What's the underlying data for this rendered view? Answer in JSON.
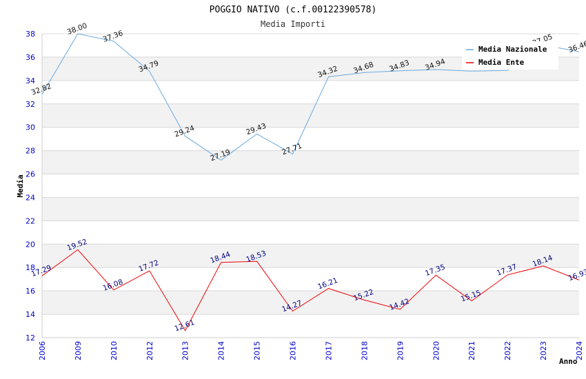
{
  "chart_data": {
    "type": "line",
    "title": "POGGIO NATIVO (c.f.00122390578)",
    "subtitle": "Media Importi",
    "xlabel": "Anno",
    "ylabel": "Media",
    "ylim": [
      12,
      38
    ],
    "yticks": [
      12,
      14,
      16,
      18,
      20,
      22,
      24,
      26,
      28,
      30,
      32,
      34,
      36,
      38
    ],
    "categories": [
      "2006",
      "2009",
      "2010",
      "2012",
      "2013",
      "2014",
      "2015",
      "2016",
      "2017",
      "2018",
      "2019",
      "2020",
      "2021",
      "2022",
      "2023",
      "2024"
    ],
    "series": [
      {
        "name": "Media Nazionale",
        "color": "#6aa8e0",
        "values": [
          32.82,
          38.0,
          37.36,
          34.79,
          29.24,
          27.19,
          29.43,
          27.71,
          34.32,
          34.68,
          34.83,
          34.94,
          34.8,
          34.87,
          37.05,
          36.46
        ],
        "labels": [
          "32.82",
          "38.00",
          "37.36",
          "34.79",
          "29.24",
          "27.19",
          "29.43",
          "27.71",
          "34.32",
          "34.68",
          "34.83",
          "34.94",
          "",
          "",
          "37.05",
          "36.46"
        ]
      },
      {
        "name": "Media Ente",
        "color": "#ee0000",
        "values": [
          17.29,
          19.52,
          16.08,
          17.72,
          12.61,
          18.44,
          18.53,
          14.27,
          16.21,
          15.22,
          14.42,
          17.35,
          15.15,
          17.37,
          18.14,
          16.93
        ],
        "labels": [
          "17.29",
          "19.52",
          "16.08",
          "17.72",
          "12.61",
          "18.44",
          "18.53",
          "14.27",
          "16.21",
          "15.22",
          "14.42",
          "17.35",
          "15.15",
          "17.37",
          "18.14",
          "16.93"
        ]
      }
    ],
    "grid": true,
    "legend": "top-right"
  }
}
